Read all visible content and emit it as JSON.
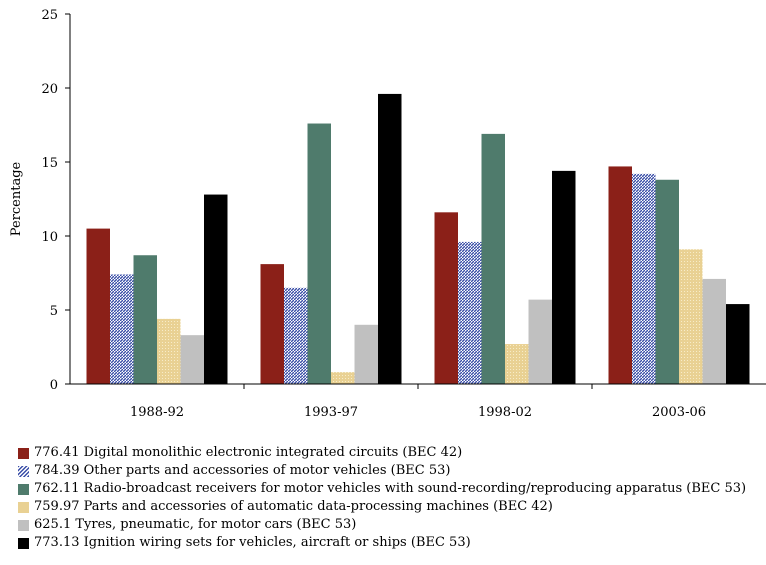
{
  "chart_data": {
    "type": "bar",
    "title": "",
    "xlabel": "",
    "ylabel": "Percentage",
    "ylim": [
      0,
      25
    ],
    "yticks": [
      0,
      5,
      10,
      15,
      20,
      25
    ],
    "categories": [
      "1988-92",
      "1993-97",
      "1998-02",
      "2003-06"
    ],
    "grid": false,
    "legend_position": "bottom",
    "series": [
      {
        "name": "776.41 Digital monolithic electronic integrated circuits (BEC 42)",
        "color": "#8b2018",
        "pattern": "solid",
        "values": [
          10.5,
          8.1,
          11.6,
          14.7
        ]
      },
      {
        "name": "784.39 Other parts and accessories of motor vehicles (BEC 53)",
        "color": "#3b4fa8",
        "pattern": "hatch",
        "values": [
          7.4,
          6.5,
          9.6,
          14.2
        ]
      },
      {
        "name": "762.11 Radio-broadcast receivers for motor vehicles with sound-recording/reproducing apparatus (BEC 53)",
        "color": "#4f7b6c",
        "pattern": "solid",
        "values": [
          8.7,
          17.6,
          16.9,
          13.8
        ]
      },
      {
        "name": "759.97 Parts and accessories of automatic data-processing machines (BEC 42)",
        "color": "#e9d193",
        "pattern": "dotted",
        "values": [
          4.4,
          0.8,
          2.7,
          9.1
        ]
      },
      {
        "name": "625.1 Tyres, pneumatic, for motor cars (BEC 53)",
        "color": "#c0c0c0",
        "pattern": "solid",
        "values": [
          3.3,
          4.0,
          5.7,
          7.1
        ]
      },
      {
        "name": "773.13 Ignition wiring sets for vehicles, aircraft or ships (BEC 53)",
        "color": "#000000",
        "pattern": "solid",
        "values": [
          12.8,
          19.6,
          14.4,
          5.4
        ]
      }
    ]
  }
}
